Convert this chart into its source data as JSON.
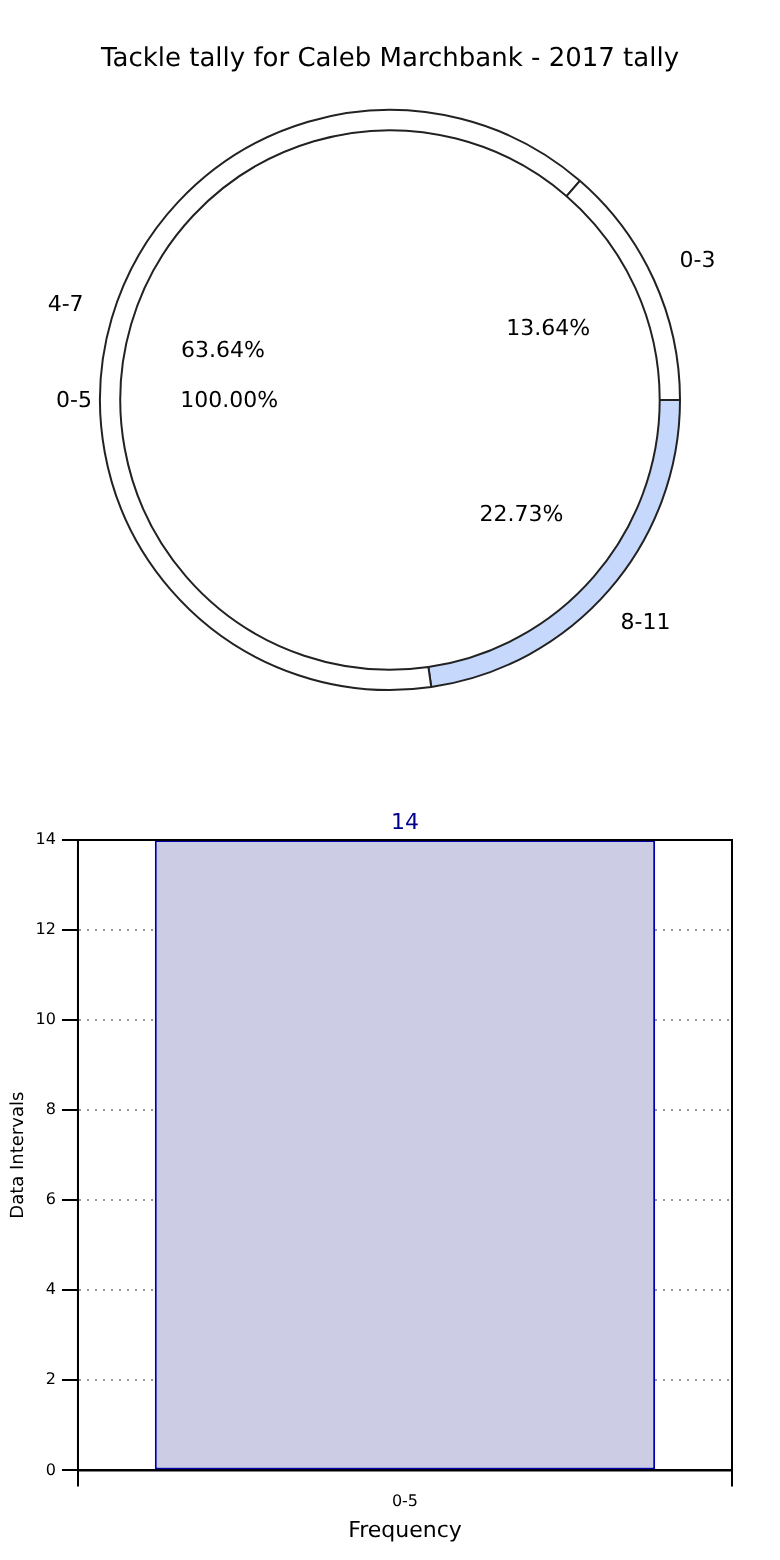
{
  "chart_data": [
    {
      "type": "donut",
      "title": "Tackle tally for Caleb Marchbank - 2017 tally",
      "categories": [
        "8-11",
        "4-7",
        "0-3"
      ],
      "values": [
        22.73,
        63.64,
        13.64
      ],
      "colors": [
        "#c6d9fc",
        "#ffffff",
        "#ffffff"
      ],
      "value_labels": [
        "22.73%",
        "63.64%",
        "13.64%"
      ]
    },
    {
      "type": "pie",
      "categories": [
        "0-5"
      ],
      "values": [
        100
      ],
      "colors": [
        "#ffffff"
      ],
      "value_labels": [
        "100.00%"
      ]
    },
    {
      "type": "bar",
      "categories": [
        "0-5"
      ],
      "values": [
        14
      ],
      "color": "#ccccE5",
      "ylim": [
        0,
        14
      ],
      "yticks": [
        0,
        2,
        4,
        6,
        8,
        10,
        12,
        14
      ],
      "grid": true,
      "xlabel": "Frequency",
      "ylabel": "Data Intervals",
      "data_labels": true
    }
  ]
}
